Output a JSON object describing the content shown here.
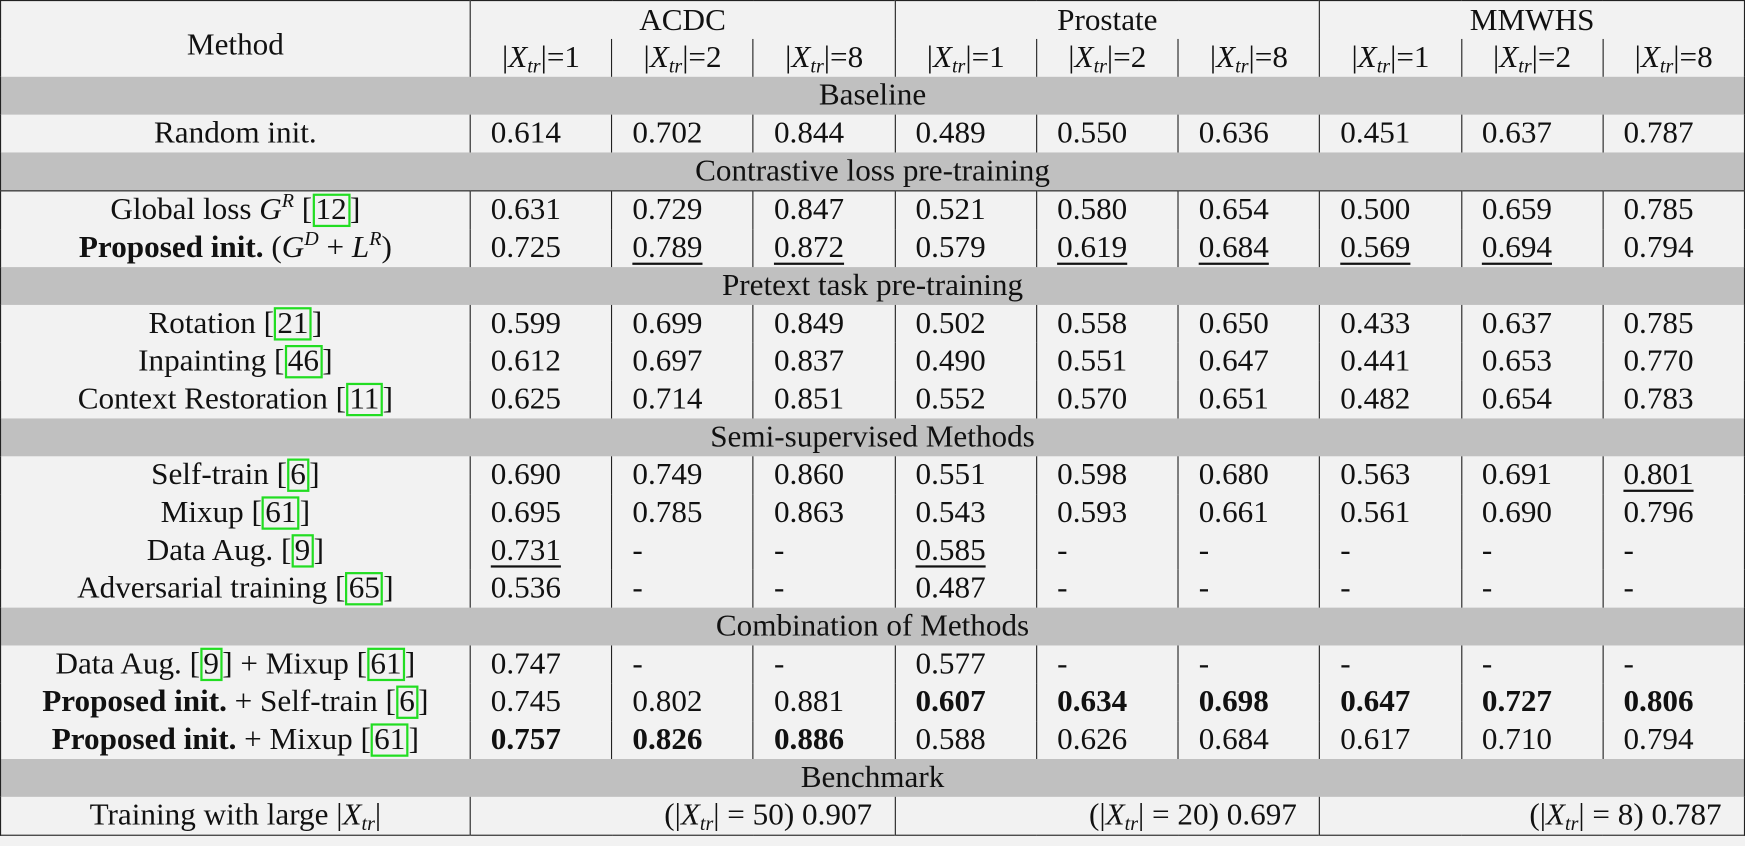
{
  "header": {
    "method_label": "Method",
    "datasets": [
      "ACDC",
      "Prostate",
      "MMWHS"
    ],
    "subcols": [
      {
        "pre": "|",
        "var": "X",
        "sub": "tr",
        "post": "|=1"
      },
      {
        "pre": "|",
        "var": "X",
        "sub": "tr",
        "post": "|=2"
      },
      {
        "pre": "|",
        "var": "X",
        "sub": "tr",
        "post": "|=8"
      }
    ]
  },
  "sections": [
    {
      "title": "Baseline",
      "rows": [
        {
          "method": [
            {
              "t": "Random init."
            }
          ],
          "values": [
            "0.614",
            "0.702",
            "0.844",
            "0.489",
            "0.550",
            "0.636",
            "0.451",
            "0.637",
            "0.787"
          ],
          "underline": [],
          "bold": []
        }
      ]
    },
    {
      "title": "Contrastive loss pre-training",
      "rows": [
        {
          "method": [
            {
              "t": "Global loss "
            },
            {
              "t": "G",
              "s": "i"
            },
            {
              "t": "R",
              "s": "sup"
            },
            {
              "t": " ["
            },
            {
              "t": "12",
              "s": "cite"
            },
            {
              "t": "]"
            }
          ],
          "values": [
            "0.631",
            "0.729",
            "0.847",
            "0.521",
            "0.580",
            "0.654",
            "0.500",
            "0.659",
            "0.785"
          ],
          "underline": [],
          "bold": []
        },
        {
          "method": [
            {
              "t": "Proposed init.",
              "s": "b"
            },
            {
              "t": " ("
            },
            {
              "t": "G",
              "s": "i"
            },
            {
              "t": "D",
              "s": "sup"
            },
            {
              "t": " + "
            },
            {
              "t": "L",
              "s": "i"
            },
            {
              "t": "R",
              "s": "sup"
            },
            {
              "t": ")"
            }
          ],
          "values": [
            "0.725",
            "0.789",
            "0.872",
            "0.579",
            "0.619",
            "0.684",
            "0.569",
            "0.694",
            "0.794"
          ],
          "underline": [
            1,
            2,
            4,
            5,
            6,
            7
          ],
          "bold": []
        }
      ]
    },
    {
      "title": "Pretext task pre-training",
      "rows": [
        {
          "method": [
            {
              "t": "Rotation ["
            },
            {
              "t": "21",
              "s": "cite"
            },
            {
              "t": "]"
            }
          ],
          "values": [
            "0.599",
            "0.699",
            "0.849",
            "0.502",
            "0.558",
            "0.650",
            "0.433",
            "0.637",
            "0.785"
          ],
          "underline": [],
          "bold": []
        },
        {
          "method": [
            {
              "t": "Inpainting ["
            },
            {
              "t": "46",
              "s": "cite"
            },
            {
              "t": "]"
            }
          ],
          "values": [
            "0.612",
            "0.697",
            "0.837",
            "0.490",
            "0.551",
            "0.647",
            "0.441",
            "0.653",
            "0.770"
          ],
          "underline": [],
          "bold": []
        },
        {
          "method": [
            {
              "t": "Context Restoration ["
            },
            {
              "t": "11",
              "s": "cite"
            },
            {
              "t": "]"
            }
          ],
          "values": [
            "0.625",
            "0.714",
            "0.851",
            "0.552",
            "0.570",
            "0.651",
            "0.482",
            "0.654",
            "0.783"
          ],
          "underline": [],
          "bold": []
        }
      ]
    },
    {
      "title": "Semi-supervised Methods",
      "rows": [
        {
          "method": [
            {
              "t": "Self-train ["
            },
            {
              "t": "6",
              "s": "cite"
            },
            {
              "t": "]"
            }
          ],
          "values": [
            "0.690",
            "0.749",
            "0.860",
            "0.551",
            "0.598",
            "0.680",
            "0.563",
            "0.691",
            "0.801"
          ],
          "underline": [
            8
          ],
          "bold": []
        },
        {
          "method": [
            {
              "t": "Mixup ["
            },
            {
              "t": "61",
              "s": "cite"
            },
            {
              "t": "]"
            }
          ],
          "values": [
            "0.695",
            "0.785",
            "0.863",
            "0.543",
            "0.593",
            "0.661",
            "0.561",
            "0.690",
            "0.796"
          ],
          "underline": [],
          "bold": []
        },
        {
          "method": [
            {
              "t": "Data Aug. ["
            },
            {
              "t": "9",
              "s": "cite"
            },
            {
              "t": "]"
            }
          ],
          "values": [
            "0.731",
            "-",
            "-",
            "0.585",
            "-",
            "-",
            "-",
            "-",
            "-"
          ],
          "underline": [
            0,
            3
          ],
          "bold": []
        },
        {
          "method": [
            {
              "t": "Adversarial training ["
            },
            {
              "t": "65",
              "s": "cite"
            },
            {
              "t": "]"
            }
          ],
          "values": [
            "0.536",
            "-",
            "-",
            "0.487",
            "-",
            "-",
            "-",
            "-",
            "-"
          ],
          "underline": [],
          "bold": []
        }
      ]
    },
    {
      "title": "Combination of Methods",
      "rows": [
        {
          "method": [
            {
              "t": "Data Aug. ["
            },
            {
              "t": "9",
              "s": "cite"
            },
            {
              "t": "] + Mixup ["
            },
            {
              "t": "61",
              "s": "cite"
            },
            {
              "t": "]"
            }
          ],
          "values": [
            "0.747",
            "-",
            "-",
            "0.577",
            "-",
            "-",
            "-",
            "-",
            "-"
          ],
          "underline": [],
          "bold": []
        },
        {
          "method": [
            {
              "t": "Proposed init.",
              "s": "b"
            },
            {
              "t": " + Self-train ["
            },
            {
              "t": "6",
              "s": "cite"
            },
            {
              "t": "]"
            }
          ],
          "values": [
            "0.745",
            "0.802",
            "0.881",
            "0.607",
            "0.634",
            "0.698",
            "0.647",
            "0.727",
            "0.806"
          ],
          "underline": [],
          "bold": [
            3,
            4,
            5,
            6,
            7,
            8
          ]
        },
        {
          "method": [
            {
              "t": "Proposed init.",
              "s": "b"
            },
            {
              "t": " + Mixup ["
            },
            {
              "t": "61",
              "s": "cite"
            },
            {
              "t": "]"
            }
          ],
          "values": [
            "0.757",
            "0.826",
            "0.886",
            "0.588",
            "0.626",
            "0.684",
            "0.617",
            "0.710",
            "0.794"
          ],
          "underline": [],
          "bold": [
            0,
            1,
            2
          ]
        }
      ]
    }
  ],
  "benchmark": {
    "title": "Benchmark",
    "method": [
      {
        "t": "Training with large |"
      },
      {
        "t": "X",
        "s": "i"
      },
      {
        "t": "tr",
        "s": "sub"
      },
      {
        "t": "|"
      }
    ],
    "cells": [
      [
        {
          "t": "(|"
        },
        {
          "t": "X",
          "s": "i"
        },
        {
          "t": "tr",
          "s": "sub"
        },
        {
          "t": "| = 50) 0.907"
        }
      ],
      [
        {
          "t": "(|"
        },
        {
          "t": "X",
          "s": "i"
        },
        {
          "t": "tr",
          "s": "sub"
        },
        {
          "t": "| = 20) 0.697"
        }
      ],
      [
        {
          "t": "(|"
        },
        {
          "t": "X",
          "s": "i"
        },
        {
          "t": "tr",
          "s": "sub"
        },
        {
          "t": "| = 8) 0.787"
        }
      ]
    ]
  },
  "colors": {
    "band": "#c0c0c0",
    "cell": "#f2f2f2",
    "cite_box": "#22dd22"
  }
}
